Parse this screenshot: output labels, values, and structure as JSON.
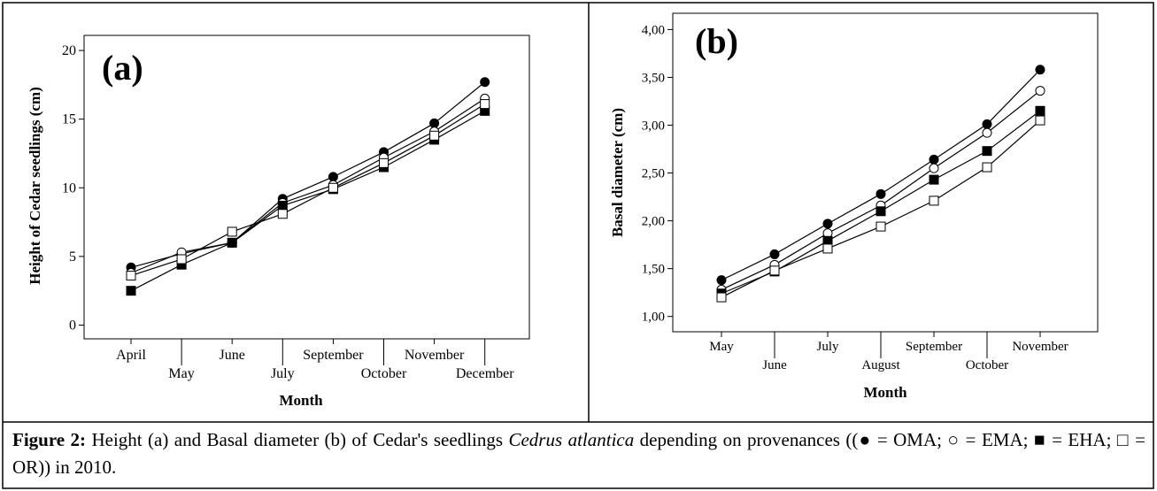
{
  "chart_data": [
    {
      "type": "line",
      "annotation": "(a)",
      "y_label": "Height of Cedar seedlings (cm)",
      "x_label": "Month",
      "categories": [
        "April",
        "May",
        "June",
        "July",
        "September",
        "October",
        "November",
        "December"
      ],
      "ylim": [
        -1,
        21.1
      ],
      "yticks": [
        0,
        5,
        10,
        15,
        20
      ],
      "series": [
        {
          "marker": "circle-filled",
          "color": "#000000",
          "values": [
            4.2,
            5.2,
            6.0,
            9.2,
            10.8,
            12.6,
            14.7,
            17.7
          ]
        },
        {
          "marker": "circle-open",
          "color": "#000000",
          "values": [
            3.8,
            5.3,
            6.0,
            8.9,
            10.2,
            12.2,
            14.1,
            16.5
          ]
        },
        {
          "marker": "square-filled",
          "color": "#000000",
          "values": [
            2.5,
            4.4,
            6.0,
            8.7,
            9.9,
            11.5,
            13.5,
            15.6
          ]
        },
        {
          "marker": "square-open",
          "color": "#000000",
          "values": [
            3.6,
            4.8,
            6.8,
            8.1,
            10.0,
            11.8,
            13.8,
            16.1
          ]
        }
      ]
    },
    {
      "type": "line",
      "annotation": "(b)",
      "y_label": "Basal diameter (cm)",
      "x_label": "Month",
      "categories": [
        "May",
        "June",
        "July",
        "August",
        "September",
        "October",
        "November"
      ],
      "ylim": [
        0.84,
        4.17
      ],
      "yticks": [
        {
          "value": 1,
          "label": "1,00"
        },
        {
          "value": 1.5,
          "label": "1,50"
        },
        {
          "value": 2,
          "label": "2,00"
        },
        {
          "value": 2.5,
          "label": "2,50"
        },
        {
          "value": 3,
          "label": "3,00"
        },
        {
          "value": 3.5,
          "label": "3,50"
        },
        {
          "value": 4,
          "label": "4,00"
        }
      ],
      "series": [
        {
          "marker": "circle-filled",
          "color": "#000000",
          "values": [
            1.38,
            1.65,
            1.97,
            2.28,
            2.64,
            3.01,
            3.58
          ]
        },
        {
          "marker": "circle-open",
          "color": "#000000",
          "values": [
            1.28,
            1.54,
            1.87,
            2.16,
            2.55,
            2.92,
            3.36
          ]
        },
        {
          "marker": "square-filled",
          "color": "#000000",
          "values": [
            1.24,
            1.47,
            1.79,
            2.1,
            2.43,
            2.73,
            3.15
          ]
        },
        {
          "marker": "square-open",
          "color": "#000000",
          "values": [
            1.2,
            1.48,
            1.71,
            1.94,
            2.21,
            2.56,
            3.05
          ]
        }
      ]
    }
  ],
  "caption": {
    "label": "Figure 2:",
    "text1": "Height (a) and Basal diameter (b) of Cedar's seedlings",
    "species": "Cedrus atlantica",
    "text2": "depending on provenances ((● = OMA; ○ = EMA; ■ = EHA; □ = OR)) in 2010."
  }
}
